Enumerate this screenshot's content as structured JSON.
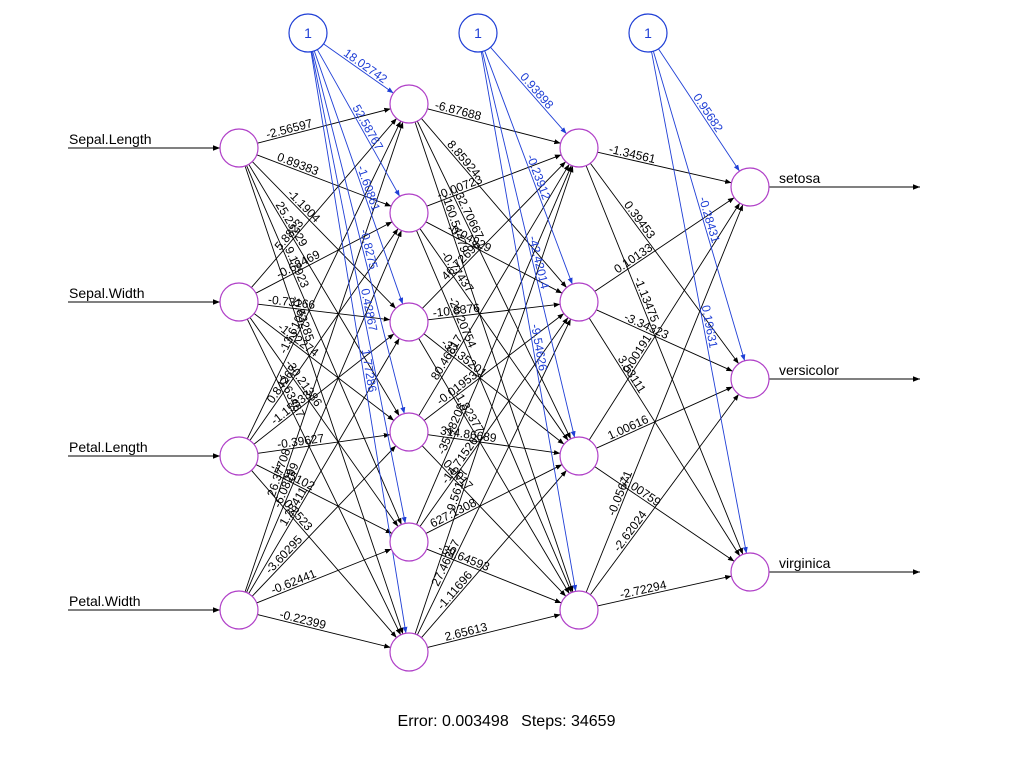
{
  "colors": {
    "node_stroke": "#b040c8",
    "bias": "#1f3fd6",
    "edge": "#000000"
  },
  "bias_label": "1",
  "inputs": [
    "Sepal.Length",
    "Sepal.Width",
    "Petal.Length",
    "Petal.Width"
  ],
  "outputs": [
    "setosa",
    "versicolor",
    "virginica"
  ],
  "weights_input_hidden1": [
    [
      "-2.56597",
      "0.89383",
      "-1.1904",
      "25.23229",
      "9.17923",
      "-0.53285"
    ],
    [
      "5.8823",
      "-0.68469",
      "-0.73166",
      "-1.22274",
      "-30.21386",
      "-0.63467"
    ],
    [
      "-13.6104",
      "0.84267",
      "-1.15333",
      "-0.39627",
      "-1.35102",
      "0.2523"
    ],
    [
      "26.37708",
      "-6.08299",
      "1.28411",
      "-3.60295",
      "-0.62441",
      "-0.22399"
    ]
  ],
  "bias_hidden1": [
    "18.02742",
    "52.58767",
    "-1.60861",
    "-0.8275",
    "0.42867",
    "1.77286"
  ],
  "weights_hidden1_hidden2": [
    [
      "-6.87688",
      "8.85924",
      "-32.70667",
      "-160.54479"
    ],
    [
      "-0.00723",
      "-0.04929",
      "-0.77437",
      "-20.20754"
    ],
    [
      "46.72696",
      "-10.8376",
      "-33.35201",
      "-1.82377"
    ],
    [
      "80.46817",
      "-0.01953",
      "314.86689",
      "0.0017"
    ],
    [
      "-35.48208",
      "-14.71526",
      "627.1308",
      "-39.64593"
    ],
    [
      "-9.56177",
      "27.46357",
      "-1.11696",
      "2.65613"
    ]
  ],
  "bias_hidden2": [
    "0.93898",
    "-0.23912",
    "-42.42014",
    "-9.54626"
  ],
  "weights_hidden2_output": [
    [
      "-1.34561",
      "0.39453",
      "-1.13475"
    ],
    [
      "0.10133",
      "-3.34323",
      "3.53111"
    ],
    [
      "0.00191",
      "1.00616",
      "-1.00759"
    ],
    [
      "-0.05671",
      "-2.62024",
      "-2.72294"
    ]
  ],
  "bias_output": [
    "0.95682",
    "-0.28431",
    "0.19631"
  ],
  "footer": {
    "error": "Error: 0.003498",
    "steps": "Steps: 34659"
  }
}
